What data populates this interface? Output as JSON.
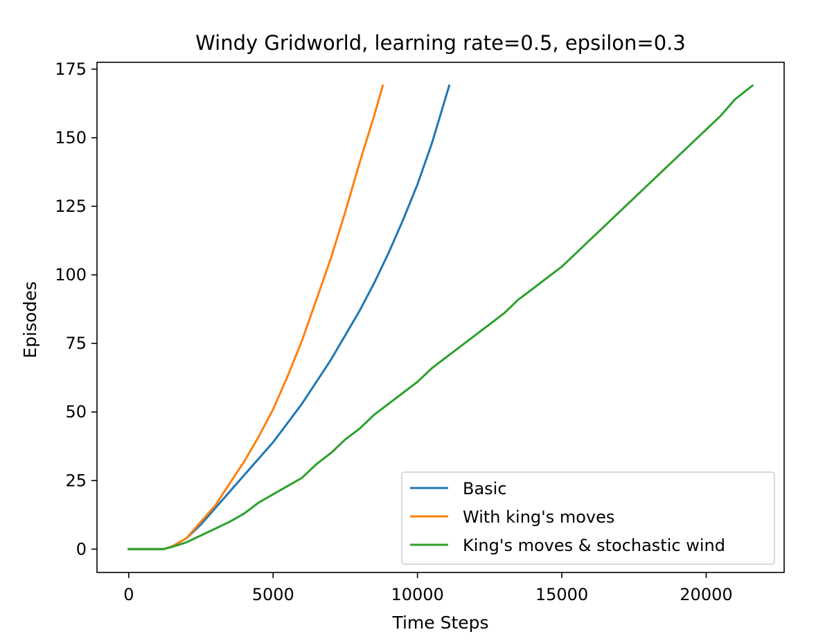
{
  "chart_data": {
    "type": "line",
    "title": "Windy Gridworld, learning rate=0.5, epsilon=0.3",
    "xlabel": "Time Steps",
    "ylabel": "Episodes",
    "xlim": [
      -1100,
      22700
    ],
    "ylim": [
      -8.5,
      177.5
    ],
    "xticks": [
      0,
      5000,
      10000,
      15000,
      20000
    ],
    "yticks": [
      0,
      25,
      50,
      75,
      100,
      125,
      150,
      175
    ],
    "grid": false,
    "legend_position": "lower right",
    "series": [
      {
        "name": "Basic",
        "color": "#1f77b4",
        "points": [
          [
            0,
            0
          ],
          [
            1200,
            0
          ],
          [
            1500,
            1
          ],
          [
            2000,
            4
          ],
          [
            2500,
            9
          ],
          [
            3000,
            15
          ],
          [
            3500,
            21
          ],
          [
            4000,
            27
          ],
          [
            4500,
            33
          ],
          [
            5000,
            39
          ],
          [
            5500,
            46
          ],
          [
            6000,
            53
          ],
          [
            6500,
            61
          ],
          [
            7000,
            69
          ],
          [
            7500,
            78
          ],
          [
            8000,
            87
          ],
          [
            8500,
            97
          ],
          [
            9000,
            108
          ],
          [
            9500,
            120
          ],
          [
            10000,
            133
          ],
          [
            10500,
            148
          ],
          [
            11100,
            169
          ]
        ]
      },
      {
        "name": "With king's moves",
        "color": "#ff7f0e",
        "points": [
          [
            0,
            0
          ],
          [
            1200,
            0
          ],
          [
            1500,
            1
          ],
          [
            2000,
            4
          ],
          [
            2500,
            10
          ],
          [
            3000,
            16
          ],
          [
            3500,
            24
          ],
          [
            4000,
            32
          ],
          [
            4500,
            41
          ],
          [
            5000,
            51
          ],
          [
            5500,
            63
          ],
          [
            6000,
            76
          ],
          [
            6500,
            91
          ],
          [
            7000,
            106
          ],
          [
            7500,
            123
          ],
          [
            8000,
            141
          ],
          [
            8500,
            158
          ],
          [
            8800,
            169
          ]
        ]
      },
      {
        "name": "King's moves & stochastic wind",
        "color": "#2ca02c",
        "points": [
          [
            0,
            0
          ],
          [
            1200,
            0
          ],
          [
            1500,
            0.8
          ],
          [
            2000,
            2.5
          ],
          [
            2500,
            5
          ],
          [
            3000,
            7.5
          ],
          [
            3500,
            10
          ],
          [
            4000,
            13
          ],
          [
            4500,
            17
          ],
          [
            5000,
            20
          ],
          [
            5500,
            23
          ],
          [
            6000,
            26
          ],
          [
            6500,
            31
          ],
          [
            7000,
            35
          ],
          [
            7500,
            40
          ],
          [
            8000,
            44
          ],
          [
            8500,
            49
          ],
          [
            9000,
            53
          ],
          [
            9500,
            57
          ],
          [
            10000,
            61
          ],
          [
            10500,
            66
          ],
          [
            11000,
            70
          ],
          [
            11500,
            74
          ],
          [
            12000,
            78
          ],
          [
            12500,
            82
          ],
          [
            13000,
            86
          ],
          [
            13500,
            91
          ],
          [
            14000,
            95
          ],
          [
            14500,
            99
          ],
          [
            15000,
            103
          ],
          [
            15500,
            108
          ],
          [
            16000,
            113
          ],
          [
            16500,
            118
          ],
          [
            17000,
            123
          ],
          [
            17500,
            128
          ],
          [
            18000,
            133
          ],
          [
            18500,
            138
          ],
          [
            19000,
            143
          ],
          [
            19500,
            148
          ],
          [
            20000,
            153
          ],
          [
            20500,
            158
          ],
          [
            21000,
            164
          ],
          [
            21600,
            169
          ]
        ]
      }
    ]
  }
}
